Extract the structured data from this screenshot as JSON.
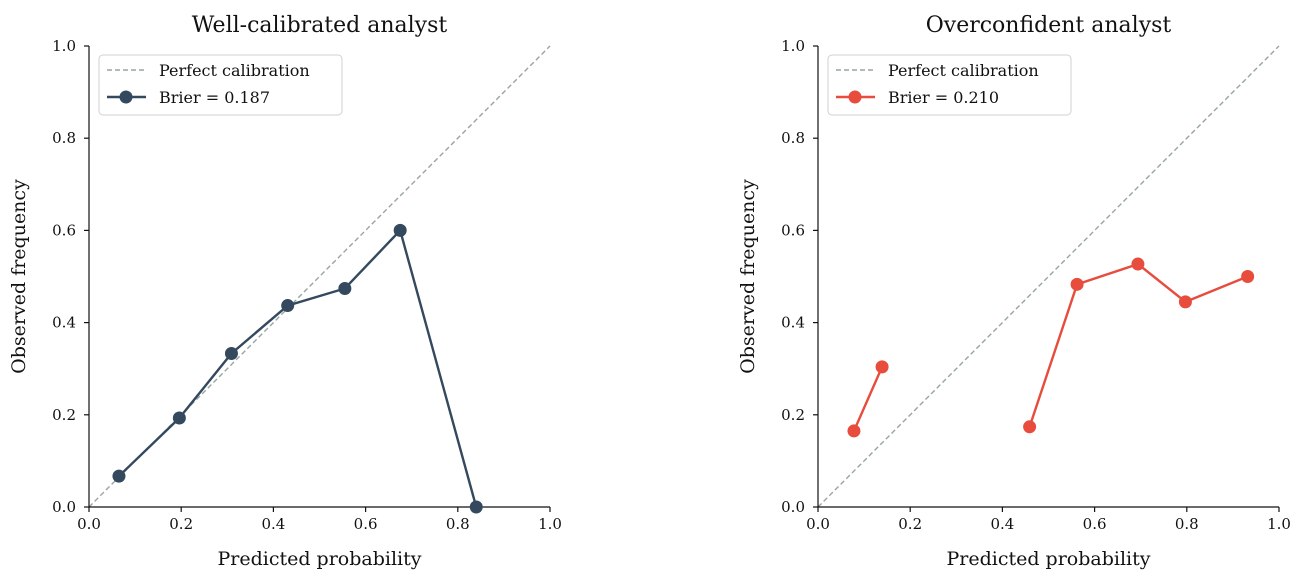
{
  "chart_data": [
    {
      "type": "line",
      "title": "Well-calibrated analyst",
      "xlabel": "Predicted probability",
      "ylabel": "Observed frequency",
      "xlim": [
        0.0,
        1.0
      ],
      "ylim": [
        0.0,
        1.0
      ],
      "xticks": [
        "0.0",
        "0.2",
        "0.4",
        "0.6",
        "0.8",
        "1.0"
      ],
      "yticks": [
        "0.0",
        "0.2",
        "0.4",
        "0.6",
        "0.8",
        "1.0"
      ],
      "legend_position": "top-left",
      "grid": false,
      "reference_line": {
        "name": "Perfect calibration",
        "x": [
          0,
          1
        ],
        "y": [
          0,
          1
        ],
        "color": "#95a5a6",
        "style": "dashed"
      },
      "series": [
        {
          "name": "Brier = 0.187",
          "color": "#34495e",
          "segments": [
            {
              "x": [
                0.065,
                0.196,
                0.309,
                0.431,
                0.555,
                0.675,
                0.84
              ],
              "y": [
                0.067,
                0.193,
                0.333,
                0.437,
                0.474,
                0.6,
                0.0
              ]
            }
          ]
        }
      ]
    },
    {
      "type": "line",
      "title": "Overconfident analyst",
      "xlabel": "Predicted probability",
      "ylabel": "Observed frequency",
      "xlim": [
        0.0,
        1.0
      ],
      "ylim": [
        0.0,
        1.0
      ],
      "xticks": [
        "0.0",
        "0.2",
        "0.4",
        "0.6",
        "0.8",
        "1.0"
      ],
      "yticks": [
        "0.0",
        "0.2",
        "0.4",
        "0.6",
        "0.8",
        "1.0"
      ],
      "legend_position": "top-left",
      "grid": false,
      "reference_line": {
        "name": "Perfect calibration",
        "x": [
          0,
          1
        ],
        "y": [
          0,
          1
        ],
        "color": "#95a5a6",
        "style": "dashed"
      },
      "series": [
        {
          "name": "Brier = 0.210",
          "color": "#e74c3c",
          "segments": [
            {
              "x": [
                0.078,
                0.139
              ],
              "y": [
                0.165,
                0.304
              ]
            },
            {
              "x": [
                0.459,
                0.562,
                0.694,
                0.797,
                0.932
              ],
              "y": [
                0.174,
                0.483,
                0.527,
                0.445,
                0.5
              ]
            }
          ]
        }
      ]
    }
  ]
}
